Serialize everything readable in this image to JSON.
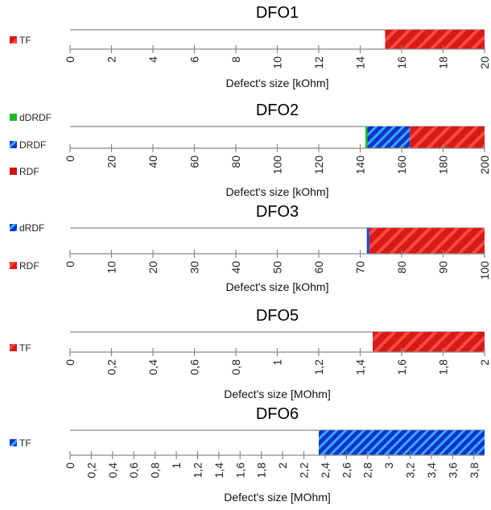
{
  "chart_data": [
    {
      "type": "bar",
      "title": "DFO1",
      "xlabel": "Defect's size [kOhm]",
      "xlim": [
        0,
        20
      ],
      "ticks": [
        "0",
        "2",
        "4",
        "6",
        "8",
        "10",
        "12",
        "14",
        "16",
        "18",
        "20"
      ],
      "legend": [
        {
          "name": "TF",
          "color": "#cc1111",
          "pattern": "hatch"
        }
      ],
      "series": [
        {
          "name": "TF",
          "start": 15.2,
          "end": 20,
          "color": "#cc1111",
          "pattern": "hatch"
        }
      ]
    },
    {
      "type": "bar",
      "title": "DFO2",
      "xlabel": "Defect's size [kOhm]",
      "xlim": [
        0,
        200
      ],
      "ticks": [
        "0",
        "20",
        "40",
        "60",
        "80",
        "100",
        "120",
        "140",
        "160",
        "180",
        "200"
      ],
      "legend": [
        {
          "name": "dDRDF",
          "color": "#22bb22",
          "pattern": "solid"
        },
        {
          "name": "DRDF",
          "color": "#1144dd",
          "pattern": "hatch"
        },
        {
          "name": "RDF",
          "color": "#cc1111",
          "pattern": "solid"
        }
      ],
      "series": [
        {
          "name": "dDRDF",
          "start": 142.5,
          "end": 143.5,
          "color": "#22bb22",
          "pattern": "solid"
        },
        {
          "name": "DRDF",
          "start": 143.5,
          "end": 164,
          "color": "#1144dd",
          "pattern": "hatch"
        },
        {
          "name": "RDF",
          "start": 164,
          "end": 200,
          "color": "#cc1111",
          "pattern": "hatch"
        }
      ]
    },
    {
      "type": "bar",
      "title": "DFO3",
      "xlabel": "Defect's size [kOhm]",
      "xlim": [
        0,
        100
      ],
      "ticks": [
        "0",
        "10",
        "20",
        "30",
        "40",
        "50",
        "60",
        "70",
        "80",
        "90",
        "100"
      ],
      "legend": [
        {
          "name": "dRDF",
          "color": "#1144dd",
          "pattern": "hatch"
        },
        {
          "name": "RDF",
          "color": "#cc1111",
          "pattern": "hatch"
        }
      ],
      "series": [
        {
          "name": "dRDF",
          "start": 71.6,
          "end": 72.2,
          "color": "#1144dd",
          "pattern": "solid"
        },
        {
          "name": "RDF",
          "start": 72.2,
          "end": 100,
          "color": "#cc1111",
          "pattern": "hatch"
        }
      ]
    },
    {
      "type": "bar",
      "title": "DFO5",
      "xlabel": "Defect's size [MOhm]",
      "xlim": [
        0,
        2
      ],
      "ticks": [
        "0",
        "0,2",
        "0,4",
        "0,6",
        "0,8",
        "1",
        "1,2",
        "1,4",
        "1,6",
        "1,8",
        "2"
      ],
      "legend": [
        {
          "name": "TF",
          "color": "#cc1111",
          "pattern": "hatch"
        }
      ],
      "series": [
        {
          "name": "TF",
          "start": 1.46,
          "end": 2,
          "color": "#cc1111",
          "pattern": "hatch"
        }
      ]
    },
    {
      "type": "bar",
      "title": "DFO6",
      "xlabel": "Defect's size [MOhm]",
      "xlim": [
        0,
        3.9
      ],
      "ticks": [
        "0",
        "0,2",
        "0,4",
        "0,6",
        "0,8",
        "1",
        "1,2",
        "1,4",
        "1,6",
        "1,8",
        "2",
        "2,2",
        "2,4",
        "2,6",
        "2,8",
        "3",
        "3,2",
        "3,4",
        "3,6",
        "3,8"
      ],
      "tick_step": 0.2,
      "legend": [
        {
          "name": "TF",
          "color": "#1144dd",
          "pattern": "hatch"
        }
      ],
      "series": [
        {
          "name": "TF",
          "start": 2.34,
          "end": 3.9,
          "color": "#1144dd",
          "pattern": "hatch"
        }
      ]
    }
  ]
}
